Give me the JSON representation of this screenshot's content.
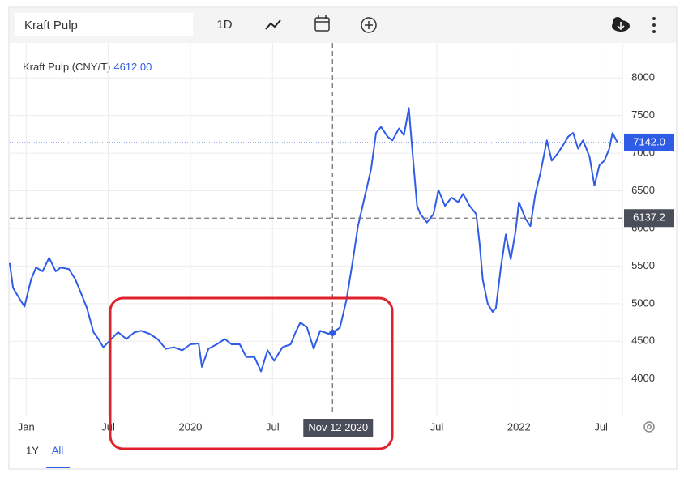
{
  "toolbar": {
    "search": "Kraft Pulp",
    "interval": "1D"
  },
  "ranges": [
    "1Y",
    "All"
  ],
  "chart_data": {
    "type": "line",
    "series": [
      {
        "name": "Kraft Pulp (CNY/T)",
        "color": "#2f5ce6",
        "x": [
          2018.9,
          2018.92,
          2018.95,
          2018.99,
          2019.03,
          2019.06,
          2019.1,
          2019.14,
          2019.18,
          2019.21,
          2019.26,
          2019.3,
          2019.33,
          2019.37,
          2019.41,
          2019.44,
          2019.47,
          2019.51,
          2019.56,
          2019.61,
          2019.66,
          2019.7,
          2019.75,
          2019.8,
          2019.85,
          2019.9,
          2019.95,
          2020.0,
          2020.05,
          2020.07,
          2020.11,
          2020.16,
          2020.21,
          2020.25,
          2020.3,
          2020.34,
          2020.39,
          2020.43,
          2020.47,
          2020.51,
          2020.56,
          2020.61,
          2020.64,
          2020.67,
          2020.71,
          2020.75,
          2020.79,
          2020.84,
          2020.87,
          2020.91,
          2020.95,
          2020.99,
          2021.02,
          2021.06,
          2021.1,
          2021.13,
          2021.16,
          2021.2,
          2021.23,
          2021.27,
          2021.3,
          2021.33,
          2021.35,
          2021.38,
          2021.4,
          2021.44,
          2021.48,
          2021.51,
          2021.55,
          2021.59,
          2021.63,
          2021.66,
          2021.7,
          2021.74,
          2021.76,
          2021.78,
          2021.81,
          2021.84,
          2021.86,
          2021.89,
          2021.92,
          2021.95,
          2021.98,
          2022.0,
          2022.04,
          2022.07,
          2022.1,
          2022.13,
          2022.17,
          2022.2,
          2022.24,
          2022.27,
          2022.3,
          2022.33,
          2022.36,
          2022.39,
          2022.43,
          2022.46,
          2022.49,
          2022.52,
          2022.55,
          2022.57,
          2022.6
        ],
        "values": [
          5540,
          5210,
          5100,
          4960,
          5320,
          5480,
          5430,
          5610,
          5430,
          5480,
          5460,
          5320,
          5160,
          4940,
          4620,
          4530,
          4420,
          4510,
          4620,
          4530,
          4620,
          4640,
          4600,
          4530,
          4400,
          4420,
          4380,
          4460,
          4470,
          4160,
          4400,
          4460,
          4530,
          4460,
          4460,
          4290,
          4290,
          4100,
          4380,
          4240,
          4420,
          4460,
          4620,
          4750,
          4680,
          4400,
          4640,
          4600,
          4620,
          4680,
          5050,
          5590,
          6030,
          6410,
          6790,
          7270,
          7350,
          7220,
          7170,
          7330,
          7240,
          7600,
          7060,
          6300,
          6190,
          6080,
          6190,
          6510,
          6300,
          6410,
          6350,
          6460,
          6300,
          6190,
          5810,
          5320,
          5000,
          4890,
          4940,
          5480,
          5920,
          5590,
          5970,
          6350,
          6130,
          6030,
          6460,
          6730,
          7170,
          6900,
          7010,
          7110,
          7220,
          7270,
          7060,
          7170,
          6950,
          6570,
          6840,
          6900,
          7060,
          7270,
          7142
        ]
      }
    ],
    "xlim": [
      2018.9,
      2022.63
    ],
    "xticks": [
      {
        "value": 2019,
        "label": "Jan"
      },
      {
        "value": 2019.5,
        "label": "Jul"
      },
      2020,
      {
        "value": 2020.5,
        "label": "Jul"
      },
      {
        "value": 2021.5,
        "label": "Jul"
      },
      2022,
      {
        "value": 2022.5,
        "label": "Jul"
      }
    ],
    "ylim": [
      3512,
      8466
    ],
    "yticks": [
      4000,
      4500,
      5000,
      5500,
      6000,
      6500,
      7000,
      7500,
      8000
    ],
    "grid": true,
    "last_value": {
      "value": 7142,
      "label": "7142.0"
    },
    "crosshair_y": 6137.2,
    "hover": {
      "x": 2020.865,
      "label": "Nov 12 2020",
      "value": {
        "value": 4612,
        "label": "4612.00"
      }
    }
  }
}
